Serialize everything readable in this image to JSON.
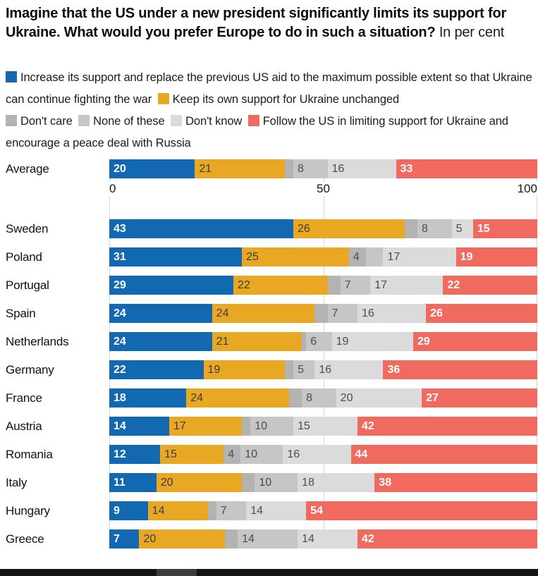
{
  "header": {
    "title": "Imagine that the US under a new president significantly limits its support for Ukraine. What would you prefer Europe to do in such a situation?",
    "subtitle": "In per cent"
  },
  "legend_keys": [
    "increase-support",
    "keep-support",
    "dont-care",
    "none-of-these",
    "dont-know",
    "follow-us"
  ],
  "legend_breaks": [
    1
  ],
  "chart_data": {
    "type": "bar",
    "stacked": true,
    "orientation": "horizontal",
    "title": "Imagine that the US under a new president significantly limits its support for Ukraine. What would you prefer Europe to do in such a situation?",
    "units": "per cent",
    "xlim": [
      0,
      100
    ],
    "x_ticks": [
      "0",
      "50",
      "100"
    ],
    "grid": "vertical lines at 0, 50, 100",
    "legend_position": "top",
    "categories": [
      "Average",
      "Sweden",
      "Poland",
      "Portugal",
      "Spain",
      "Netherlands",
      "Germany",
      "France",
      "Austria",
      "Romania",
      "Italy",
      "Hungary",
      "Greece"
    ],
    "series": [
      {
        "name": "Increase its support and replace the previous US aid to the maximum possible extent so that Ukraine can continue fighting the war",
        "color": "#1268B1",
        "values": [
          20,
          43,
          31,
          29,
          24,
          24,
          22,
          18,
          14,
          12,
          11,
          9,
          7
        ]
      },
      {
        "name": "Keep its own support for Ukraine unchanged",
        "color": "#E9A823",
        "values": [
          21,
          26,
          25,
          22,
          24,
          21,
          19,
          24,
          17,
          15,
          20,
          14,
          20
        ]
      },
      {
        "name": "Don't care",
        "color": "#B3B3B3",
        "values": [
          2,
          3,
          4,
          3,
          3,
          1,
          2,
          3,
          2,
          4,
          3,
          2,
          3
        ]
      },
      {
        "name": "None of these",
        "color": "#C6C6C6",
        "values": [
          8,
          8,
          4,
          7,
          7,
          6,
          5,
          8,
          10,
          10,
          10,
          7,
          14
        ]
      },
      {
        "name": "Don't know",
        "color": "#DBDBDB",
        "values": [
          16,
          5,
          17,
          17,
          16,
          19,
          16,
          20,
          15,
          16,
          18,
          14,
          14
        ]
      },
      {
        "name": "Follow the US in limiting support for Ukraine and encourage a peace deal with Russia",
        "color": "#F16A60",
        "values": [
          33,
          15,
          19,
          22,
          26,
          29,
          36,
          27,
          42,
          44,
          38,
          54,
          42
        ]
      }
    ],
    "value_labels": [
      [
        "20",
        "21",
        "",
        "8",
        "16",
        "33"
      ],
      [
        "43",
        "26",
        "",
        "8",
        "5",
        "15"
      ],
      [
        "31",
        "25",
        "4",
        "",
        "17",
        "19"
      ],
      [
        "29",
        "22",
        "",
        "7",
        "17",
        "22"
      ],
      [
        "24",
        "24",
        "",
        "7",
        "16",
        "26"
      ],
      [
        "24",
        "21",
        "",
        "6",
        "19",
        "29"
      ],
      [
        "22",
        "19",
        "",
        "5",
        "16",
        "36"
      ],
      [
        "18",
        "24",
        "",
        "8",
        "20",
        "27"
      ],
      [
        "14",
        "17",
        "",
        "10",
        "15",
        "42"
      ],
      [
        "12",
        "15",
        "4",
        "10",
        "16",
        "44"
      ],
      [
        "11",
        "20",
        "",
        "10",
        "18",
        "38"
      ],
      [
        "9",
        "14",
        "",
        "7",
        "14",
        "54"
      ],
      [
        "7",
        "20",
        "",
        "14",
        "14",
        "42"
      ]
    ]
  }
}
